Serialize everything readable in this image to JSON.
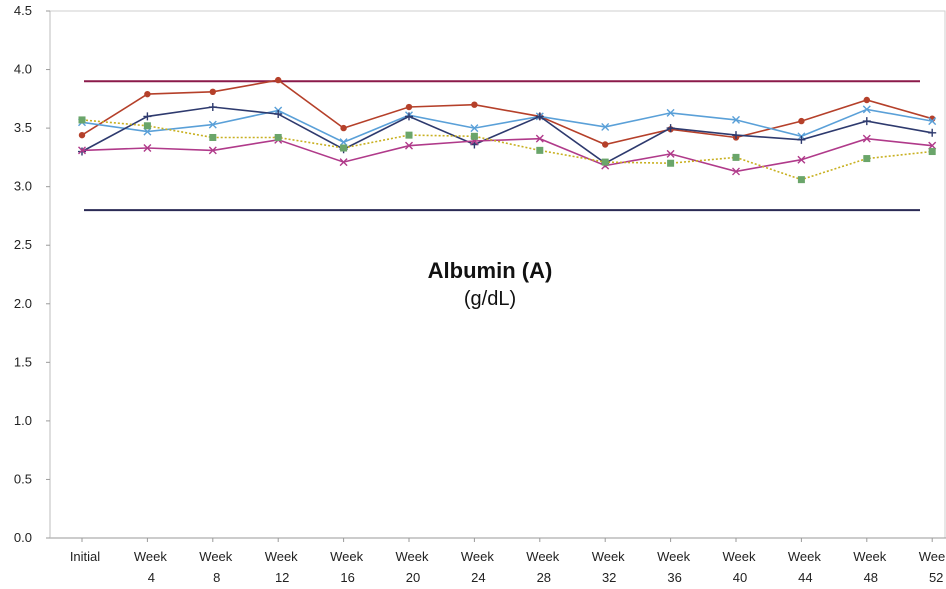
{
  "chart_data": {
    "type": "line",
    "title": "Albumin (A)",
    "subtitle": "(g/dL)",
    "xlabel": "",
    "ylabel": "",
    "categories": [
      [
        "Initial",
        ""
      ],
      [
        "Week",
        "4"
      ],
      [
        "Week",
        "8"
      ],
      [
        "Week",
        "12"
      ],
      [
        "Week",
        "16"
      ],
      [
        "Week",
        "20"
      ],
      [
        "Week",
        "24"
      ],
      [
        "Week",
        "28"
      ],
      [
        "Week",
        "32"
      ],
      [
        "Week",
        "36"
      ],
      [
        "Week",
        "40"
      ],
      [
        "Week",
        "44"
      ],
      [
        "Week",
        "48"
      ],
      [
        "Week",
        "52"
      ]
    ],
    "ylim": [
      0,
      4.5
    ],
    "yticks": [
      "0.0",
      "0.5",
      "1.0",
      "1.5",
      "2.0",
      "2.5",
      "3.0",
      "3.5",
      "4.0",
      "4.5"
    ],
    "reference_lines": [
      {
        "value": 3.9,
        "color": "#8b1a4a"
      },
      {
        "value": 2.8,
        "color": "#2a2a55"
      }
    ],
    "series": [
      {
        "color": "#b5402a",
        "marker": "circle",
        "dashed": false,
        "values": [
          3.44,
          3.79,
          3.81,
          3.91,
          3.5,
          3.68,
          3.7,
          3.6,
          3.36,
          3.49,
          3.42,
          3.56,
          3.74,
          3.58
        ]
      },
      {
        "color": "#5aa0d8",
        "marker": "x",
        "dashed": false,
        "values": [
          3.55,
          3.47,
          3.53,
          3.65,
          3.38,
          3.61,
          3.5,
          3.6,
          3.51,
          3.63,
          3.57,
          3.43,
          3.66,
          3.56
        ]
      },
      {
        "color": "#2e3a6e",
        "marker": "plus",
        "dashed": false,
        "values": [
          3.3,
          3.6,
          3.68,
          3.62,
          3.32,
          3.6,
          3.36,
          3.6,
          3.2,
          3.5,
          3.44,
          3.4,
          3.56,
          3.46
        ]
      },
      {
        "color": "#b03a8a",
        "marker": "x",
        "dashed": false,
        "values": [
          3.31,
          3.33,
          3.31,
          3.4,
          3.21,
          3.35,
          3.39,
          3.41,
          3.18,
          3.28,
          3.13,
          3.23,
          3.41,
          3.35
        ]
      },
      {
        "color": "#c8b020",
        "marker": "square",
        "dashed": true,
        "markerColor": "#6aa56a",
        "values": [
          3.57,
          3.52,
          3.42,
          3.42,
          3.33,
          3.44,
          3.43,
          3.31,
          3.21,
          3.2,
          3.25,
          3.06,
          3.24,
          3.3
        ]
      }
    ],
    "grid": false,
    "legend": "none"
  }
}
